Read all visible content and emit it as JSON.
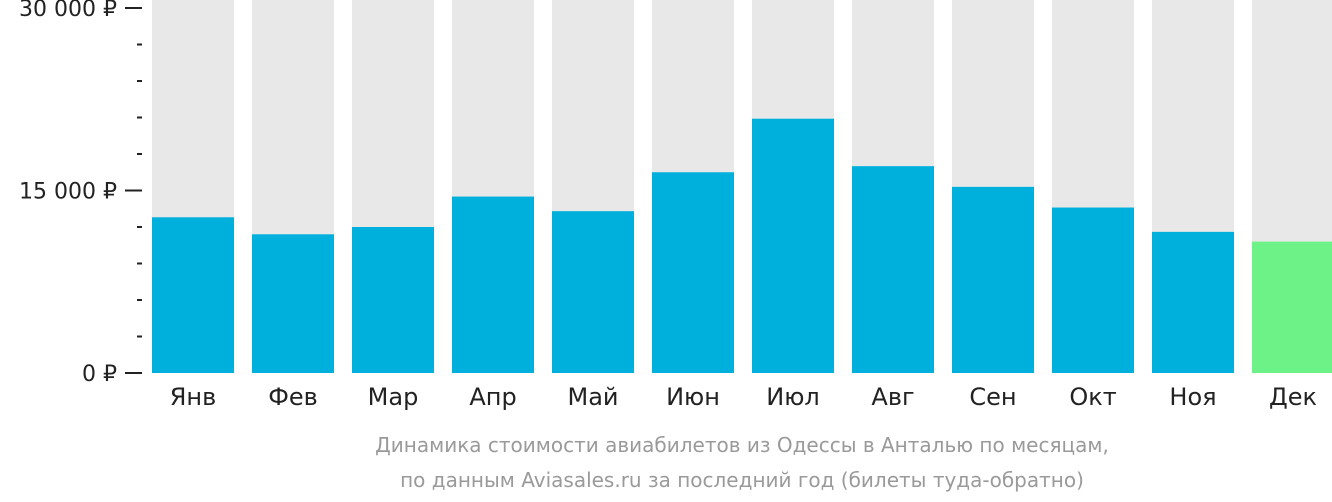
{
  "chart_data": {
    "type": "bar",
    "categories": [
      "Янв",
      "Фев",
      "Мар",
      "Апр",
      "Май",
      "Июн",
      "Июл",
      "Авг",
      "Сен",
      "Окт",
      "Ноя",
      "Дек"
    ],
    "values": [
      12800,
      11400,
      12000,
      14500,
      13300,
      16500,
      20900,
      17000,
      15300,
      13600,
      11600,
      10800
    ],
    "highlight_index": 11,
    "ylim": [
      0,
      30000
    ],
    "yticks": [
      {
        "value": 0,
        "label": "0 ₽"
      },
      {
        "value": 15000,
        "label": "15 000 ₽"
      },
      {
        "value": 30000,
        "label": "30 000 ₽"
      }
    ],
    "minor_tick_step": 3000,
    "caption": [
      "Динамика стоимости авиабилетов из Одессы в Анталью по месяцам,",
      "по данным Aviasales.ru за последний год (билеты туда-обратно)"
    ],
    "grid": false,
    "colors": {
      "bar": "#00b0dc",
      "highlight": "#6cf287",
      "background_bar": "#e8e8e8",
      "axis": "#222222",
      "caption": "#9a9a9a"
    }
  }
}
